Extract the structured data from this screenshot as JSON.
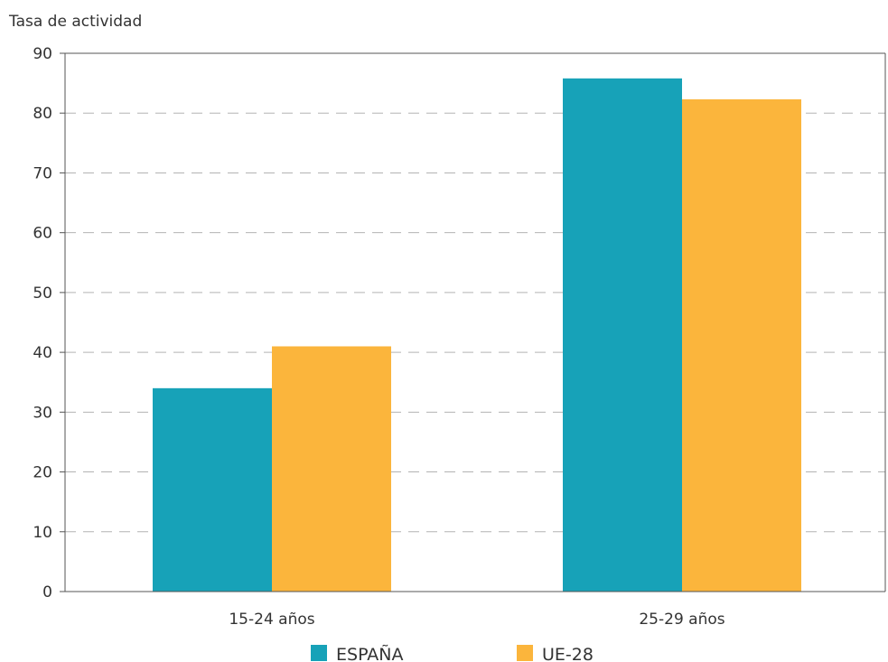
{
  "chart_data": {
    "type": "bar",
    "ylabel": "Tasa de actividad",
    "xlabel": "",
    "categories": [
      "15-24 años",
      "25-29 años"
    ],
    "series": [
      {
        "name": "ESPAÑA",
        "color": "#17a2b8",
        "values": [
          34,
          85.8
        ]
      },
      {
        "name": "UE-28",
        "color": "#fbb53c",
        "values": [
          41,
          82.3
        ]
      }
    ],
    "ylim": [
      0,
      90
    ],
    "yticks": [
      0,
      10,
      20,
      30,
      40,
      50,
      60,
      70,
      80,
      90
    ],
    "grid": true,
    "legend_position": "bottom"
  }
}
